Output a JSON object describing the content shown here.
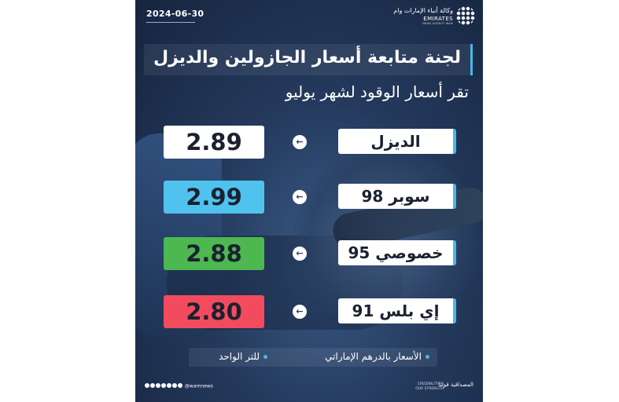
{
  "date": "2024-06-30",
  "agency": {
    "arabic": "وكالة أنباء الإمارات وام",
    "english": "EMIRATES",
    "sub": "NEWS AGENCY WAM"
  },
  "title": "لجنة متابعة أسعار الجازولين والديزل",
  "subtitle": "تقر أسعار الوقود لشهر يوليو",
  "fuels": [
    {
      "label": "الديزل",
      "price": "2.89",
      "color": "#ffffff"
    },
    {
      "label": "سوبر 98",
      "price": "2.99",
      "color": "#4fc3ee"
    },
    {
      "label": "خصوصي 95",
      "price": "2.88",
      "color": "#4cb84f"
    },
    {
      "label": "إي بلس 91",
      "price": "2.80",
      "color": "#f24b5e"
    }
  ],
  "notes": {
    "currency": "الأسعار بالدرهم الإماراتي",
    "unit": "للتر الواحد"
  },
  "footer": {
    "handle": "@wamnews",
    "slogan_ar": "المصداقية قوتنا",
    "slogan_en": "CREDIBILITY IS OUR STRENGTH"
  },
  "icons": {
    "arrow": "arrow-left-icon",
    "logo": "wam-globe-icon"
  }
}
